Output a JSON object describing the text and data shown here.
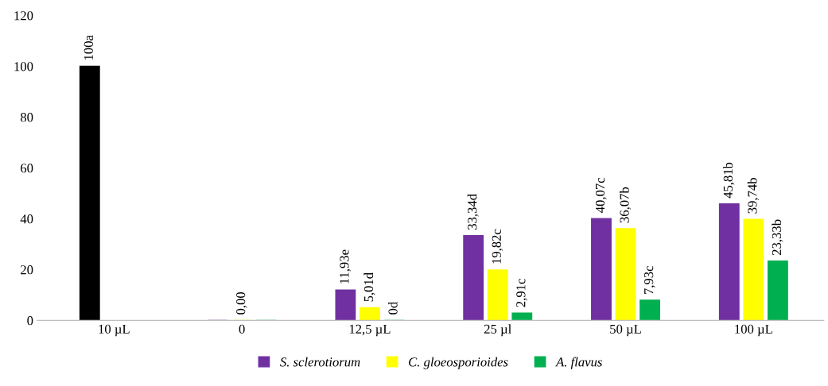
{
  "chart_data": {
    "type": "bar",
    "categories": [
      "10 µL",
      "0",
      "12,5 µL",
      "25 µl",
      "50 µL",
      "100 µL"
    ],
    "series": [
      {
        "name": "S. sclerotiorum",
        "color": "#7030a0",
        "values": [
          null,
          0,
          11.93,
          33.34,
          40.07,
          45.81
        ],
        "value_labels": [
          null,
          null,
          "11,93e",
          "33,34d",
          "40,07c",
          "45,81b"
        ]
      },
      {
        "name": "C. gloeosporioides",
        "color": "#ffff00",
        "values": [
          null,
          0,
          5.01,
          19.82,
          36.07,
          39.74
        ],
        "value_labels": [
          null,
          null,
          "5,01d",
          "19,82c",
          "36,07b",
          "39,74b"
        ]
      },
      {
        "name": "A. flavus",
        "color": "#00b050",
        "values": [
          null,
          0,
          0,
          2.91,
          7.93,
          23.33
        ],
        "value_labels": [
          null,
          null,
          "0d",
          "2,91c",
          "7,93c",
          "23,33b"
        ]
      },
      {
        "color": "#000000",
        "values": [
          100,
          null,
          null,
          null,
          null,
          null
        ],
        "value_labels": [
          "100a",
          null,
          null,
          null,
          null,
          null
        ]
      }
    ],
    "annotations": [
      {
        "text": "0,00",
        "x": "0",
        "y": 0
      }
    ],
    "ylim": [
      0,
      120
    ],
    "yticks": [
      0,
      20,
      40,
      60,
      80,
      100,
      120
    ],
    "grid": false,
    "legend": "bottom"
  }
}
